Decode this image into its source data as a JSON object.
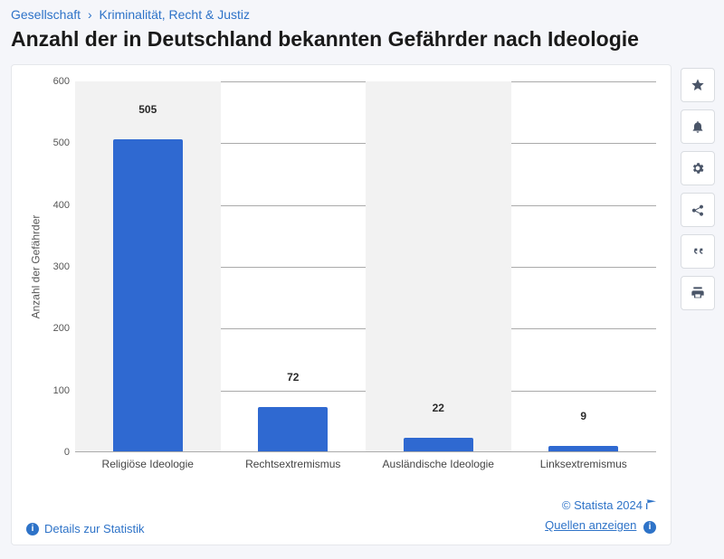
{
  "breadcrumb": {
    "parent": "Gesellschaft",
    "child": "Kriminalität, Recht & Justiz"
  },
  "title": "Anzahl der in Deutschland bekannten Gefährder nach Ideologie",
  "chart": {
    "type": "bar",
    "ylabel": "Anzahl der Gefährder",
    "ylim": [
      0,
      600
    ],
    "ytick_step": 100,
    "yticks": [
      0,
      100,
      200,
      300,
      400,
      500,
      600
    ],
    "categories": [
      "Religiöse Ideologie",
      "Rechtsextremismus",
      "Ausländische Ideologie",
      "Linksextremismus"
    ],
    "values": [
      505,
      72,
      22,
      9
    ],
    "bar_color": "#2f69d1",
    "band_color": "#f2f2f2",
    "grid_color": "#aaaaaa",
    "background_color": "#ffffff",
    "bar_width_pct": 48,
    "label_fontsize": 12,
    "title_fontsize": 23,
    "value_label_weight": 700
  },
  "footer": {
    "details": "Details zur Statistik",
    "copyright": "© Statista 2024",
    "sources": "Quellen anzeigen"
  },
  "actions": {
    "favorite": "star-icon",
    "alert": "bell-icon",
    "settings": "gear-icon",
    "share": "share-icon",
    "cite": "quote-icon",
    "print": "print-icon"
  }
}
